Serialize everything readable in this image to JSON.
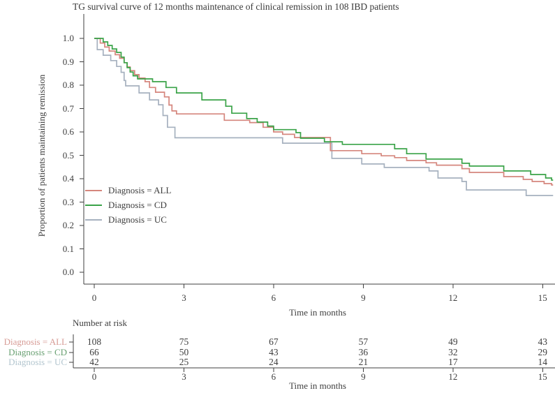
{
  "title": "TG survival curve of 12 months maintenance of clinical remission in 108 IBD patients",
  "colors": {
    "axis": "#3f3f3f",
    "text": "#3e3e3e",
    "series_all": "#d5867d",
    "series_cd": "#3aa348",
    "series_uc": "#a6b1bf",
    "risk_label_all": "#d79c96",
    "risk_label_cd": "#6aa173",
    "risk_label_uc": "#b3c6cf"
  },
  "chart_data": {
    "type": "line",
    "subtype": "kaplan-meier-step",
    "title": "TG survival curve of 12 months maintenance of clinical remission in 108 IBD patients",
    "xlabel": "Time in months",
    "ylabel": "Proportion of patients maintaining remission",
    "x_ticks": [
      0,
      3,
      6,
      9,
      12,
      15
    ],
    "y_ticks": [
      0.0,
      0.1,
      0.2,
      0.3,
      0.4,
      0.5,
      0.6,
      0.7,
      0.8,
      0.9,
      1.0
    ],
    "xlim": [
      0,
      15.35
    ],
    "ylim": [
      0.0,
      1.0
    ],
    "grid": false,
    "legend_position": "inside-left-middle",
    "x_end": 15.35,
    "legend": [
      {
        "label": "Diagnosis = ALL",
        "color": "#d5867d"
      },
      {
        "label": "Diagnosis = CD",
        "color": "#3aa348"
      },
      {
        "label": "Diagnosis = UC",
        "color": "#a6b1bf"
      }
    ],
    "series": [
      {
        "name": "Diagnosis = UC",
        "color": "#a6b1bf",
        "steps": [
          [
            0,
            1.0
          ],
          [
            0.1,
            0.952
          ],
          [
            0.3,
            0.928
          ],
          [
            0.55,
            0.905
          ],
          [
            0.75,
            0.88
          ],
          [
            0.9,
            0.855
          ],
          [
            1.0,
            0.82
          ],
          [
            1.05,
            0.797
          ],
          [
            1.5,
            0.767
          ],
          [
            1.85,
            0.737
          ],
          [
            2.15,
            0.716
          ],
          [
            2.3,
            0.67
          ],
          [
            2.45,
            0.62
          ],
          [
            2.7,
            0.575
          ],
          [
            6.3,
            0.552
          ],
          [
            7.95,
            0.487
          ],
          [
            8.95,
            0.463
          ],
          [
            9.7,
            0.448
          ],
          [
            11.2,
            0.433
          ],
          [
            11.5,
            0.403
          ],
          [
            12.3,
            0.388
          ],
          [
            12.45,
            0.352
          ],
          [
            14.45,
            0.328
          ]
        ]
      },
      {
        "name": "Diagnosis = ALL",
        "color": "#d5867d",
        "steps": [
          [
            0,
            1.0
          ],
          [
            0.2,
            0.98
          ],
          [
            0.35,
            0.963
          ],
          [
            0.5,
            0.946
          ],
          [
            0.7,
            0.93
          ],
          [
            0.85,
            0.915
          ],
          [
            1.0,
            0.896
          ],
          [
            1.1,
            0.878
          ],
          [
            1.2,
            0.862
          ],
          [
            1.35,
            0.845
          ],
          [
            1.5,
            0.83
          ],
          [
            1.7,
            0.815
          ],
          [
            1.85,
            0.79
          ],
          [
            2.05,
            0.77
          ],
          [
            2.35,
            0.75
          ],
          [
            2.5,
            0.715
          ],
          [
            2.6,
            0.69
          ],
          [
            2.75,
            0.677
          ],
          [
            4.35,
            0.65
          ],
          [
            5.2,
            0.64
          ],
          [
            5.65,
            0.62
          ],
          [
            6.0,
            0.6
          ],
          [
            6.3,
            0.59
          ],
          [
            6.7,
            0.576
          ],
          [
            7.9,
            0.52
          ],
          [
            8.95,
            0.507
          ],
          [
            9.6,
            0.498
          ],
          [
            10.05,
            0.49
          ],
          [
            10.45,
            0.478
          ],
          [
            11.1,
            0.468
          ],
          [
            11.45,
            0.458
          ],
          [
            12.3,
            0.443
          ],
          [
            12.55,
            0.427
          ],
          [
            13.7,
            0.409
          ],
          [
            14.35,
            0.397
          ],
          [
            14.65,
            0.388
          ],
          [
            15.05,
            0.379
          ],
          [
            15.3,
            0.373
          ]
        ]
      },
      {
        "name": "Diagnosis = CD",
        "color": "#3aa348",
        "steps": [
          [
            0,
            1.0
          ],
          [
            0.3,
            0.985
          ],
          [
            0.45,
            0.97
          ],
          [
            0.6,
            0.955
          ],
          [
            0.75,
            0.94
          ],
          [
            0.9,
            0.92
          ],
          [
            1.0,
            0.896
          ],
          [
            1.1,
            0.875
          ],
          [
            1.2,
            0.856
          ],
          [
            1.3,
            0.84
          ],
          [
            1.45,
            0.827
          ],
          [
            1.95,
            0.815
          ],
          [
            2.4,
            0.79
          ],
          [
            2.75,
            0.767
          ],
          [
            3.6,
            0.737
          ],
          [
            4.4,
            0.71
          ],
          [
            4.6,
            0.68
          ],
          [
            5.1,
            0.657
          ],
          [
            5.45,
            0.642
          ],
          [
            5.8,
            0.625
          ],
          [
            6.0,
            0.61
          ],
          [
            6.75,
            0.597
          ],
          [
            6.9,
            0.573
          ],
          [
            7.7,
            0.558
          ],
          [
            8.3,
            0.547
          ],
          [
            10.05,
            0.528
          ],
          [
            10.45,
            0.507
          ],
          [
            11.1,
            0.484
          ],
          [
            12.3,
            0.466
          ],
          [
            12.55,
            0.454
          ],
          [
            13.7,
            0.433
          ],
          [
            14.6,
            0.418
          ],
          [
            15.1,
            0.403
          ],
          [
            15.3,
            0.394
          ]
        ]
      }
    ]
  },
  "risk_table": {
    "title": "Number at risk",
    "xlabel": "Time in months",
    "times": [
      0,
      3,
      6,
      9,
      12,
      15
    ],
    "rows": [
      {
        "label": "Diagnosis = ALL",
        "color": "#d79c96",
        "values": [
          108,
          75,
          67,
          57,
          49,
          43
        ]
      },
      {
        "label": "Diagnosis = CD",
        "color": "#6aa173",
        "values": [
          66,
          50,
          43,
          36,
          32,
          29
        ]
      },
      {
        "label": "Diagnosis = UC",
        "color": "#b3c6cf",
        "values": [
          42,
          25,
          24,
          21,
          17,
          14
        ]
      }
    ]
  }
}
